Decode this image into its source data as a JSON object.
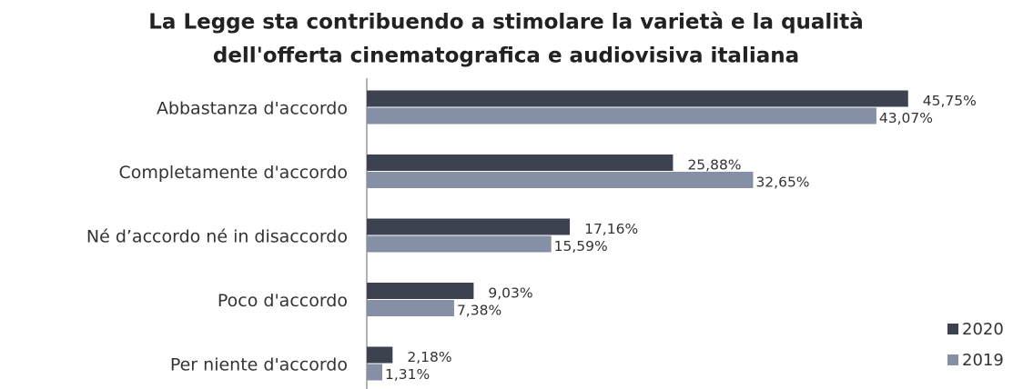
{
  "chart_data": {
    "type": "bar",
    "orientation": "horizontal",
    "title": [
      "La Legge sta contribuendo a stimolare la varietà e la qualità",
      "dell'offerta cinematografica e audiovisiva italiana"
    ],
    "categories": [
      "Abbastanza d'accordo",
      "Completamente d'accordo",
      "Né d’accordo né in disaccordo",
      "Poco d'accordo",
      "Per niente d'accordo"
    ],
    "series": [
      {
        "name": "2020",
        "color": "#3c4250",
        "values": [
          45.75,
          25.88,
          17.16,
          9.03,
          2.18
        ],
        "value_labels": [
          "45,75%",
          "25,88%",
          "17,16%",
          "9,03%",
          "2,18%"
        ]
      },
      {
        "name": "2019",
        "color": "#8590a7",
        "values": [
          43.07,
          32.65,
          15.59,
          7.38,
          1.31
        ],
        "value_labels": [
          "43,07%",
          "32,65%",
          "15,59%",
          "7,38%",
          "1,31%"
        ]
      }
    ],
    "xlim": [
      0,
      50
    ],
    "legend": "bottom-right"
  }
}
